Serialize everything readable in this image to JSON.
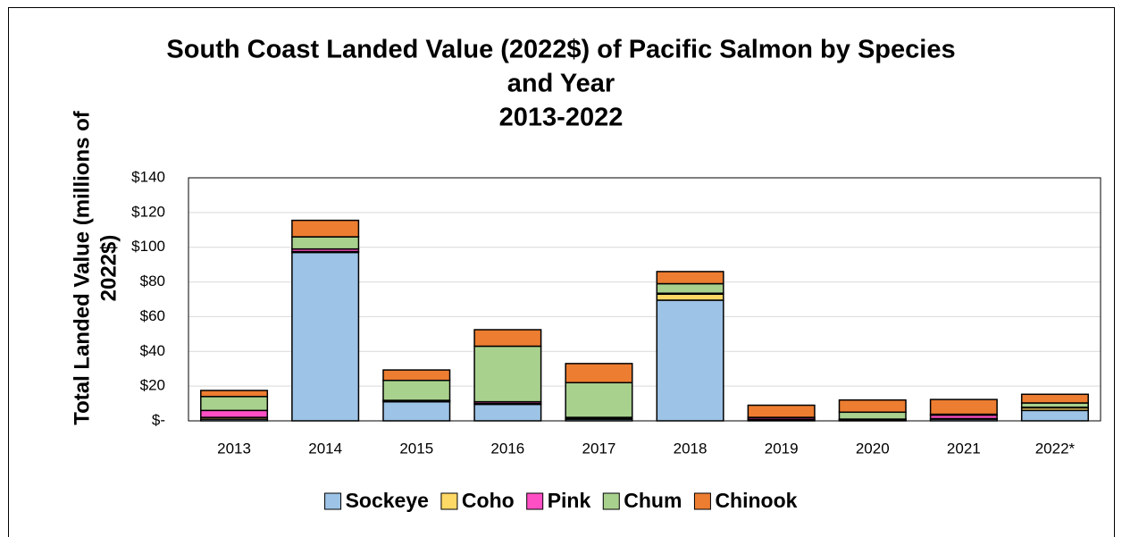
{
  "chart_data": {
    "type": "stacked_bar",
    "title": [
      "South Coast Landed Value (2022$) of Pacific Salmon by Species",
      "and Year",
      "2013-2022"
    ],
    "y_label": [
      "Total Landed Value (millions of",
      "2022$)"
    ],
    "categories": [
      "2013",
      "2014",
      "2015",
      "2016",
      "2017",
      "2018",
      "2019",
      "2020",
      "2021",
      "2022*"
    ],
    "series": [
      {
        "name": "Sockeye",
        "color": "#9dc3e6",
        "values": [
          1,
          97,
          11,
          9.5,
          1,
          69.5,
          0.5,
          0.5,
          1,
          6
        ]
      },
      {
        "name": "Coho",
        "color": "#ffd966",
        "values": [
          1,
          0.5,
          0.3,
          0.5,
          0.3,
          3.5,
          0.2,
          0.3,
          0.3,
          1.5
        ]
      },
      {
        "name": "Pink",
        "color": "#ff4fc4",
        "values": [
          4,
          1.5,
          0.5,
          1,
          0.7,
          0.5,
          1,
          0.2,
          2,
          0.3
        ]
      },
      {
        "name": "Chum",
        "color": "#a9d18e",
        "values": [
          8,
          7,
          11.5,
          32,
          20,
          5.5,
          0.3,
          4,
          0.5,
          2.5
        ]
      },
      {
        "name": "Chinook",
        "color": "#ed7d31",
        "values": [
          3.5,
          9.5,
          6,
          9.5,
          11,
          7,
          7,
          7,
          8.5,
          5
        ]
      }
    ],
    "ylim": [
      0,
      140
    ],
    "yticks": [
      {
        "value": 0,
        "label": "$-"
      },
      {
        "value": 20,
        "label": "$20"
      },
      {
        "value": 40,
        "label": "$40"
      },
      {
        "value": 60,
        "label": "$60"
      },
      {
        "value": 80,
        "label": "$80"
      },
      {
        "value": 100,
        "label": "$100"
      },
      {
        "value": 120,
        "label": "$120"
      },
      {
        "value": 140,
        "label": "$140"
      }
    ],
    "grid": true,
    "legend": "bottom"
  }
}
